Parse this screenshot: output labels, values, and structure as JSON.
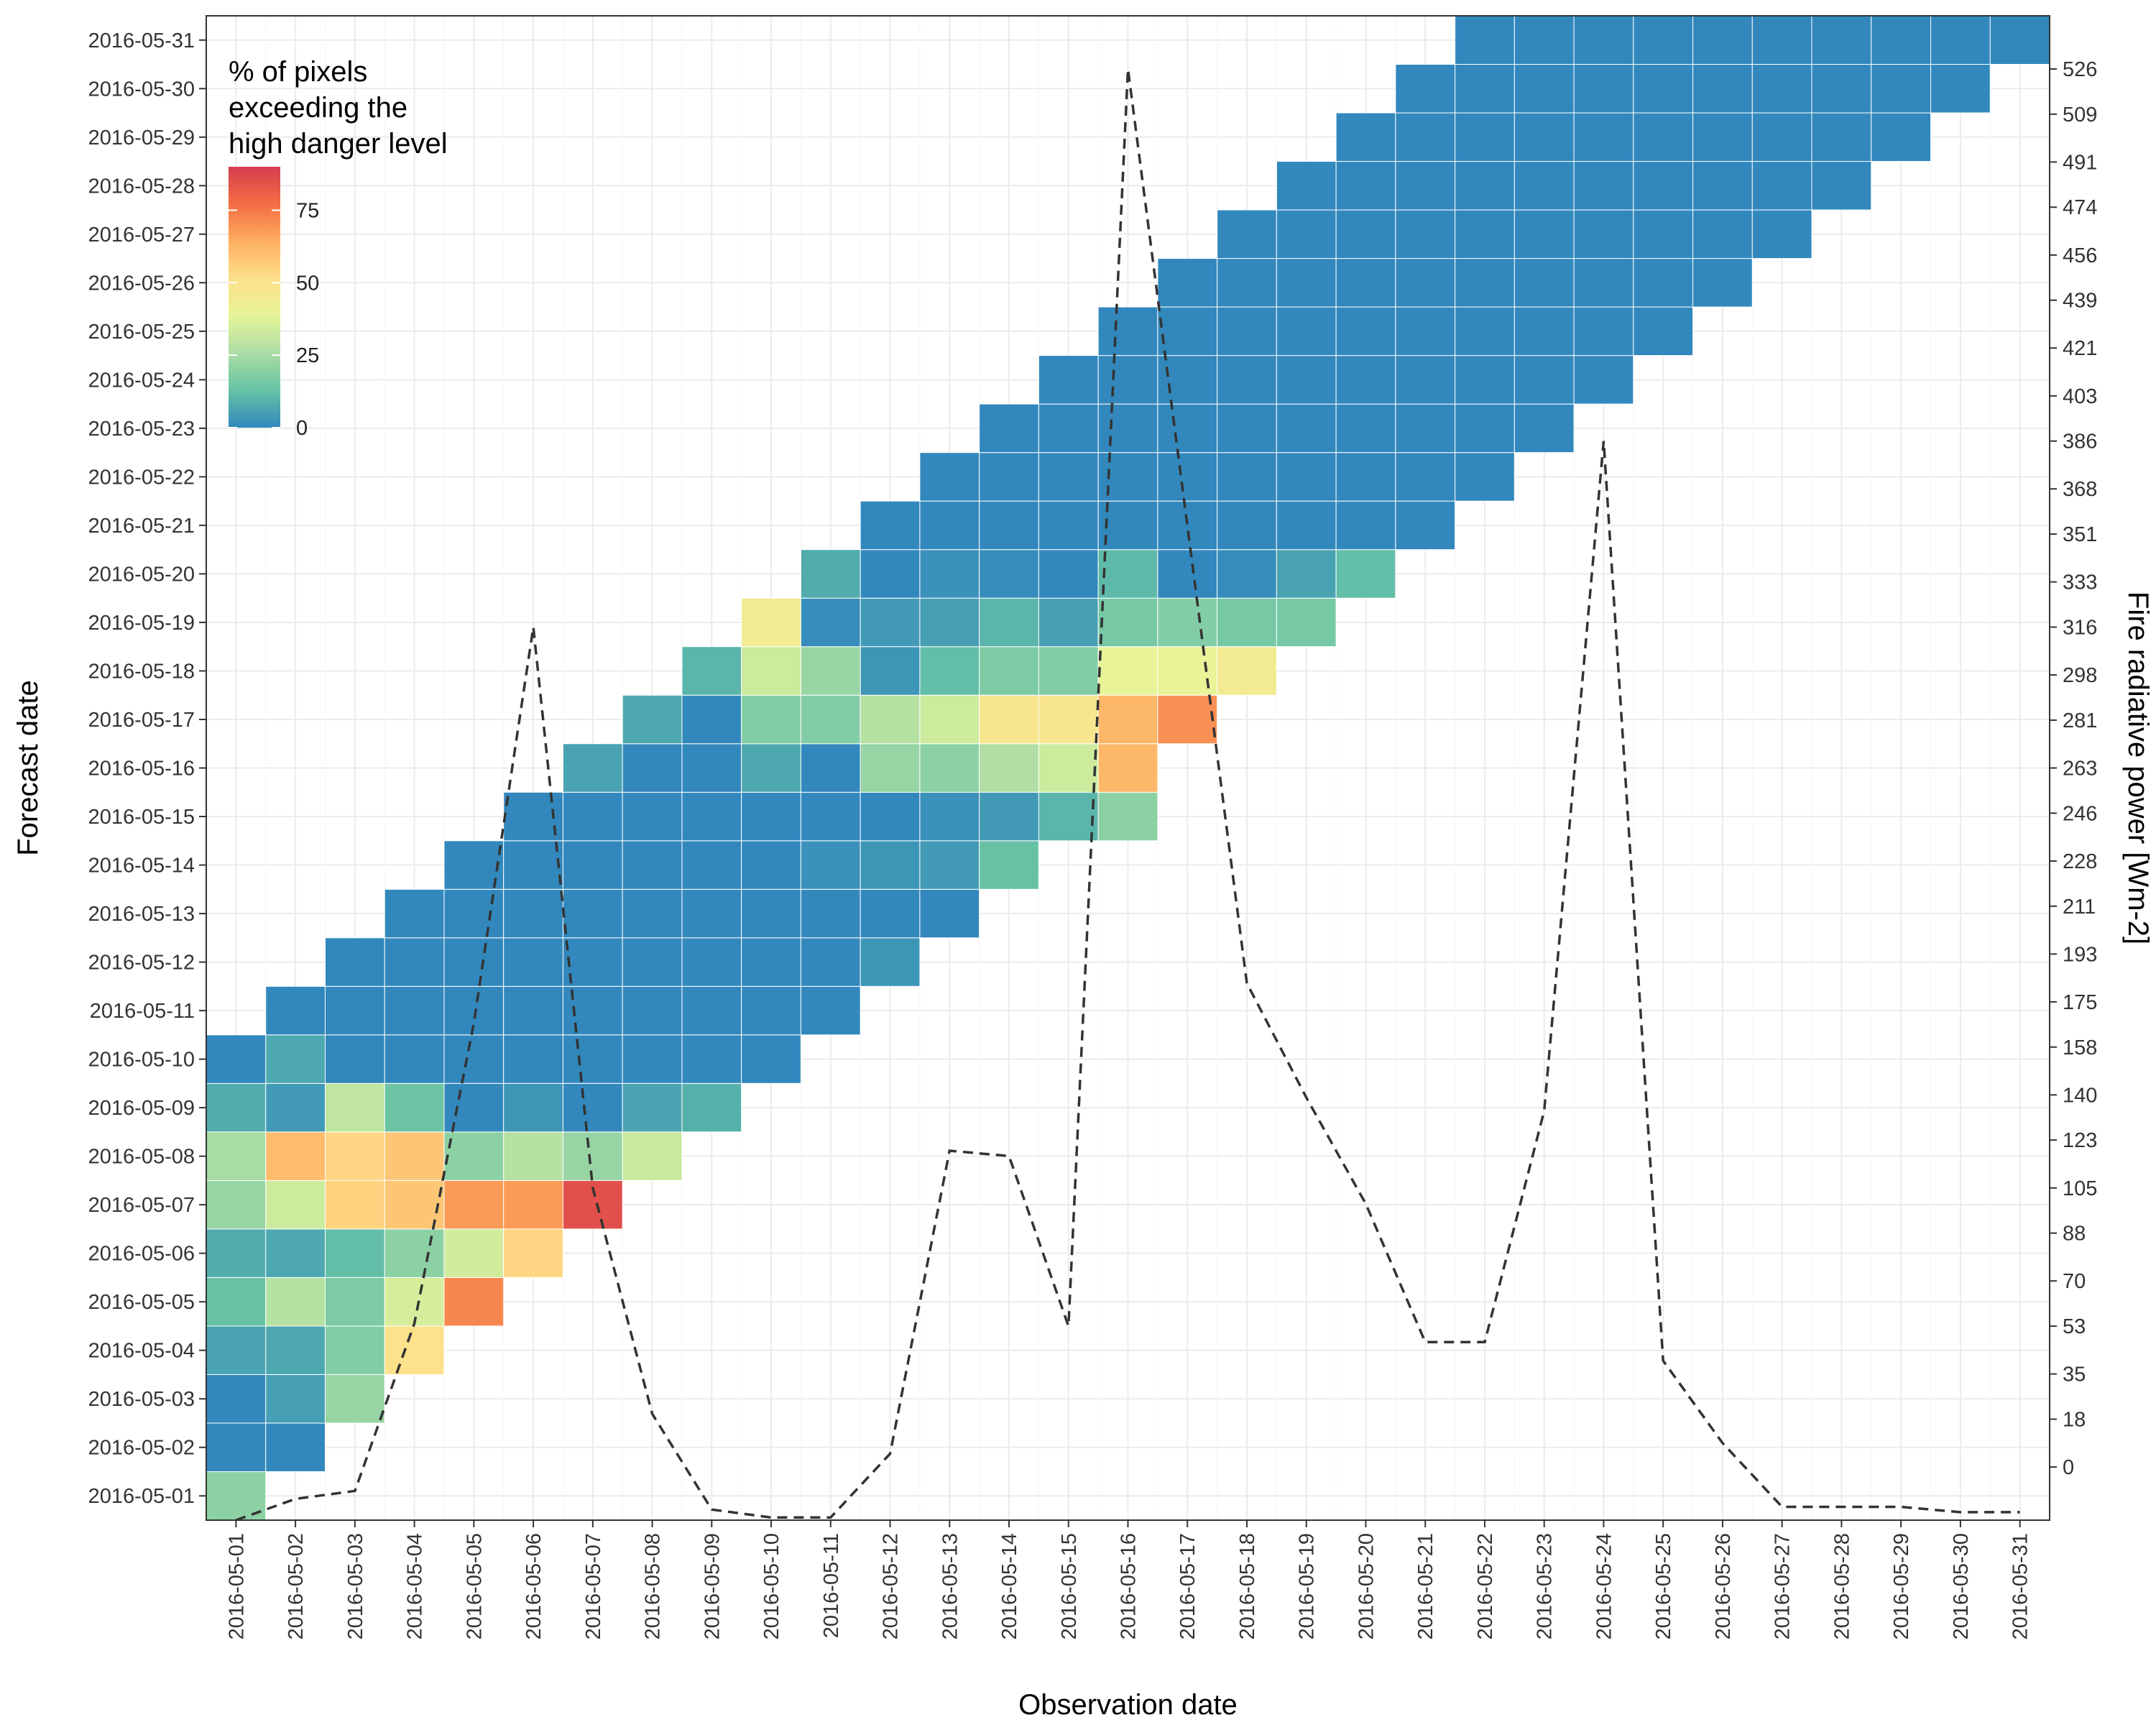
{
  "chart_data": {
    "type": "heatmap",
    "title": "",
    "xlabel": "Observation date",
    "ylabel": "Forecast date",
    "y2label": "Fire radiative power [Wm-2]",
    "dates": [
      "2016-05-01",
      "2016-05-02",
      "2016-05-03",
      "2016-05-04",
      "2016-05-05",
      "2016-05-06",
      "2016-05-07",
      "2016-05-08",
      "2016-05-09",
      "2016-05-10",
      "2016-05-11",
      "2016-05-12",
      "2016-05-13",
      "2016-05-14",
      "2016-05-15",
      "2016-05-16",
      "2016-05-17",
      "2016-05-18",
      "2016-05-19",
      "2016-05-20",
      "2016-05-21",
      "2016-05-22",
      "2016-05-23",
      "2016-05-24",
      "2016-05-25",
      "2016-05-26",
      "2016-05-27",
      "2016-05-28",
      "2016-05-29",
      "2016-05-30",
      "2016-05-31"
    ],
    "legend": {
      "title_lines": [
        "% of pixels",
        "exceeding the",
        "high danger level"
      ],
      "ticks": [
        0,
        25,
        50,
        75
      ],
      "range": [
        0,
        90
      ],
      "placement": "top-left",
      "colors": [
        "#3288bd",
        "#66c2a5",
        "#abdda4",
        "#e6f598",
        "#fee08b",
        "#fdae61",
        "#f46d43",
        "#d53e4f"
      ]
    },
    "cells_note": "each row: forecast date index, first observation index, values",
    "rows": [
      {
        "f": 0,
        "start": 0,
        "values": [
          20
        ]
      },
      {
        "f": 1,
        "start": 0,
        "values": [
          0,
          0
        ]
      },
      {
        "f": 2,
        "start": 0,
        "values": [
          0,
          5,
          22
        ]
      },
      {
        "f": 3,
        "start": 0,
        "values": [
          6,
          7,
          18,
          51
        ]
      },
      {
        "f": 4,
        "start": 0,
        "values": [
          13,
          28,
          17,
          35,
          72
        ]
      },
      {
        "f": 5,
        "start": 0,
        "values": [
          8,
          7,
          12,
          20,
          34,
          54
        ]
      },
      {
        "f": 6,
        "start": 0,
        "values": [
          22,
          33,
          55,
          58,
          68,
          68,
          85
        ]
      },
      {
        "f": 7,
        "start": 0,
        "values": [
          25,
          61,
          54,
          58,
          20,
          28,
          22,
          32
        ]
      },
      {
        "f": 8,
        "start": 0,
        "values": [
          8,
          4,
          30,
          14,
          0,
          3,
          0,
          6,
          9
        ]
      },
      {
        "f": 9,
        "start": 0,
        "values": [
          0,
          7,
          0,
          0,
          0,
          0,
          0,
          0,
          0,
          0
        ]
      },
      {
        "f": 10,
        "start": 1,
        "values": [
          0,
          0,
          0,
          0,
          0,
          0,
          0,
          0,
          0,
          0
        ]
      },
      {
        "f": 11,
        "start": 2,
        "values": [
          0,
          0,
          0,
          0,
          0,
          0,
          0,
          0,
          0,
          3
        ]
      },
      {
        "f": 12,
        "start": 3,
        "values": [
          0,
          0,
          0,
          0,
          0,
          0,
          0,
          0,
          0,
          0
        ]
      },
      {
        "f": 13,
        "start": 4,
        "values": [
          0,
          0,
          0,
          0,
          0,
          0,
          2,
          3,
          4,
          13
        ]
      },
      {
        "f": 14,
        "start": 5,
        "values": [
          0,
          0,
          0,
          0,
          0,
          0,
          0,
          2,
          4,
          10,
          20
        ]
      },
      {
        "f": 15,
        "start": 6,
        "values": [
          6,
          0,
          0,
          7,
          0,
          22,
          20,
          27,
          33,
          62
        ]
      },
      {
        "f": 16,
        "start": 7,
        "values": [
          7,
          0,
          18,
          18,
          28,
          33,
          48,
          48,
          62,
          70
        ]
      },
      {
        "f": 17,
        "start": 8,
        "values": [
          10,
          33,
          22,
          3,
          12,
          17,
          18,
          40,
          40,
          45
        ]
      },
      {
        "f": 18,
        "start": 9,
        "values": [
          45,
          1,
          4,
          5,
          10,
          5,
          16,
          18,
          16,
          16
        ]
      },
      {
        "f": 19,
        "start": 10,
        "values": [
          8,
          0,
          2,
          1,
          0,
          11,
          0,
          1,
          6,
          12
        ]
      },
      {
        "f": 20,
        "start": 11,
        "values": [
          0,
          0,
          0,
          0,
          0,
          0,
          0,
          0,
          0,
          0
        ]
      },
      {
        "f": 21,
        "start": 12,
        "values": [
          0,
          0,
          0,
          0,
          0,
          0,
          0,
          0,
          0,
          0
        ]
      },
      {
        "f": 22,
        "start": 13,
        "values": [
          0,
          0,
          0,
          0,
          0,
          0,
          0,
          0,
          0,
          0
        ]
      },
      {
        "f": 23,
        "start": 14,
        "values": [
          0,
          0,
          0,
          0,
          0,
          0,
          0,
          0,
          0,
          0
        ]
      },
      {
        "f": 24,
        "start": 15,
        "values": [
          0,
          0,
          0,
          0,
          0,
          0,
          0,
          0,
          0,
          0
        ]
      },
      {
        "f": 25,
        "start": 16,
        "values": [
          0,
          0,
          0,
          0,
          0,
          0,
          0,
          0,
          0,
          0
        ]
      },
      {
        "f": 26,
        "start": 17,
        "values": [
          0,
          0,
          0,
          0,
          0,
          0,
          0,
          0,
          0,
          0
        ]
      },
      {
        "f": 27,
        "start": 18,
        "values": [
          0,
          0,
          0,
          0,
          0,
          0,
          0,
          0,
          0,
          0
        ]
      },
      {
        "f": 28,
        "start": 19,
        "values": [
          0,
          0,
          0,
          0,
          0,
          0,
          0,
          0,
          0,
          0
        ]
      },
      {
        "f": 29,
        "start": 20,
        "values": [
          0,
          0,
          0,
          0,
          0,
          0,
          0,
          0,
          0,
          0
        ]
      },
      {
        "f": 30,
        "start": 21,
        "values": [
          0,
          0,
          0,
          0,
          0,
          0,
          0,
          0,
          0,
          0
        ]
      }
    ],
    "y2_ticks": [
      0,
      18,
      35,
      53,
      70,
      88,
      105,
      123,
      140,
      158,
      175,
      193,
      211,
      228,
      246,
      263,
      281,
      298,
      316,
      333,
      351,
      368,
      386,
      403,
      421,
      439,
      456,
      474,
      491,
      509,
      526
    ],
    "y2_range": [
      -20,
      546
    ],
    "frp_line": {
      "style": "dashed",
      "x": [
        "2016-05-01",
        "2016-05-02",
        "2016-05-03",
        "2016-05-04",
        "2016-05-05",
        "2016-05-06",
        "2016-05-07",
        "2016-05-08",
        "2016-05-09",
        "2016-05-10",
        "2016-05-11",
        "2016-05-12",
        "2016-05-13",
        "2016-05-14",
        "2016-05-15",
        "2016-05-16",
        "2016-05-17",
        "2016-05-18",
        "2016-05-19",
        "2016-05-20",
        "2016-05-21",
        "2016-05-22",
        "2016-05-23",
        "2016-05-24",
        "2016-05-25",
        "2016-05-26",
        "2016-05-27",
        "2016-05-28",
        "2016-05-29",
        "2016-05-30",
        "2016-05-31"
      ],
      "values": [
        -20,
        -12,
        -9,
        54,
        167,
        316,
        105,
        20,
        -16,
        -19,
        -19,
        5,
        119,
        117,
        53,
        526,
        354,
        182,
        139,
        99,
        47,
        47,
        134,
        386,
        40,
        9,
        -15,
        -15,
        -15,
        -17,
        -17
      ]
    }
  }
}
